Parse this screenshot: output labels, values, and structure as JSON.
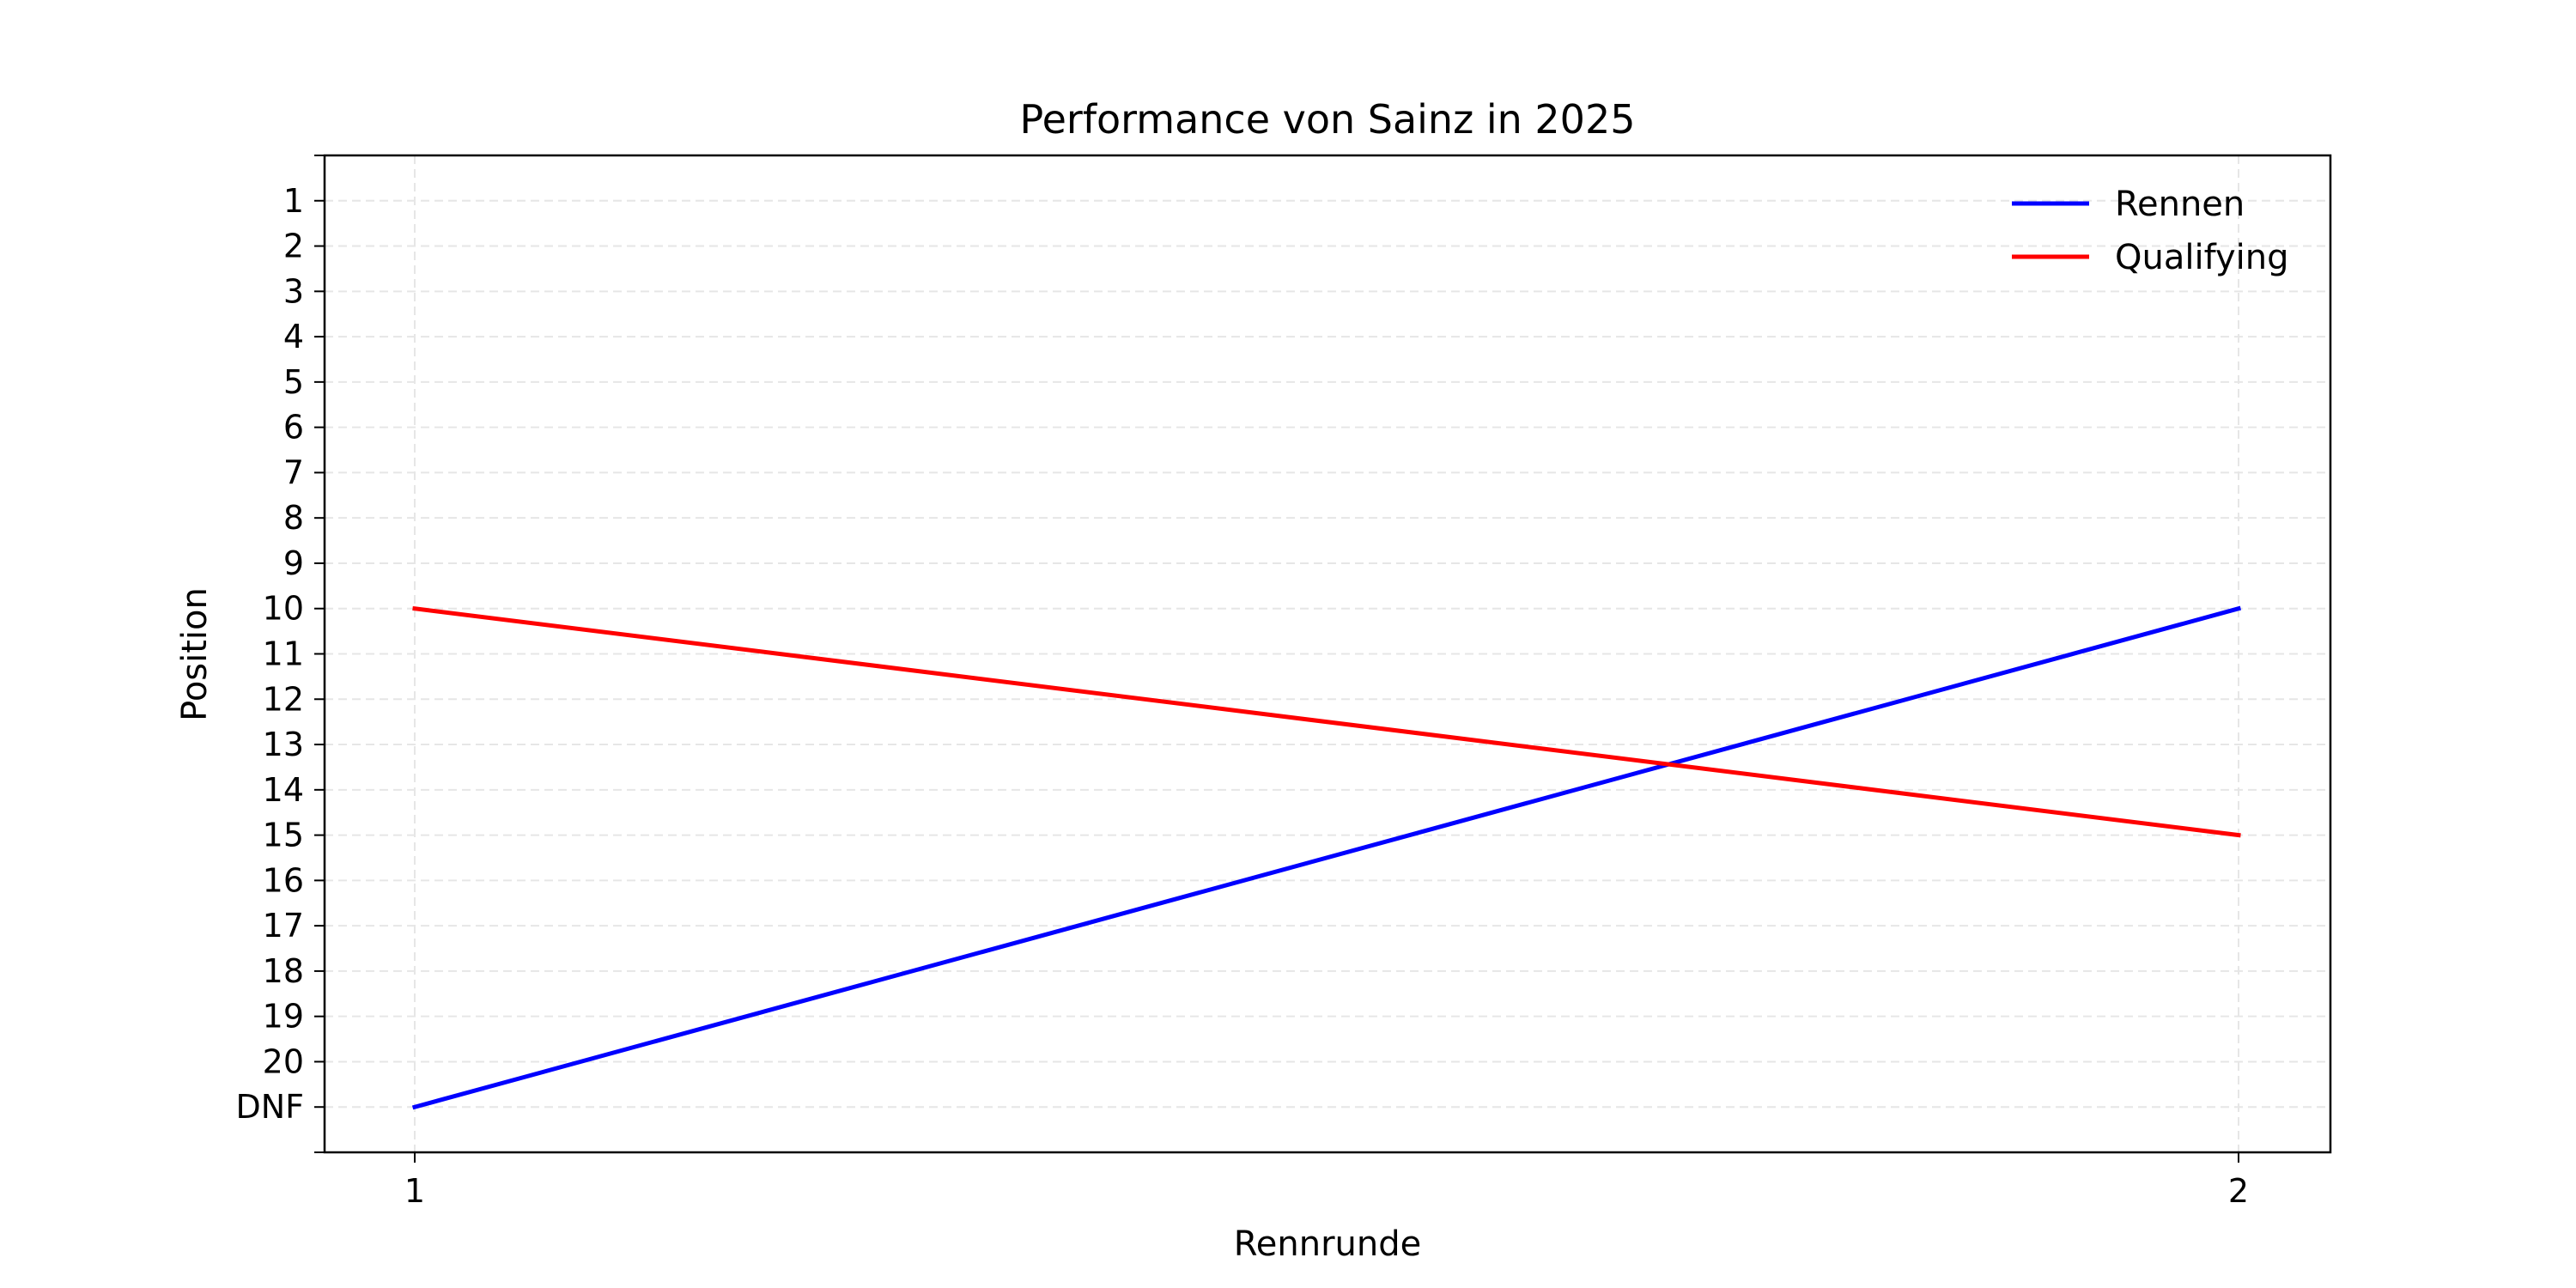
{
  "chart_data": {
    "type": "line",
    "title": "Performance von Sainz in 2025",
    "xlabel": "Rennrunde",
    "ylabel": "Position",
    "x": [
      1,
      2
    ],
    "x_tick_labels": [
      "1",
      "2"
    ],
    "y_tick_labels": [
      "1",
      "2",
      "3",
      "4",
      "5",
      "6",
      "7",
      "8",
      "9",
      "10",
      "11",
      "12",
      "13",
      "14",
      "15",
      "16",
      "17",
      "18",
      "19",
      "20",
      "DNF"
    ],
    "ylim": [
      0,
      22
    ],
    "y_inverted": true,
    "grid": true,
    "legend_position": "top-right",
    "series": [
      {
        "name": "Rennen",
        "color": "#0000ff",
        "values": [
          21,
          10
        ]
      },
      {
        "name": "Qualifying",
        "color": "#ff0000",
        "values": [
          10,
          15
        ]
      }
    ]
  }
}
